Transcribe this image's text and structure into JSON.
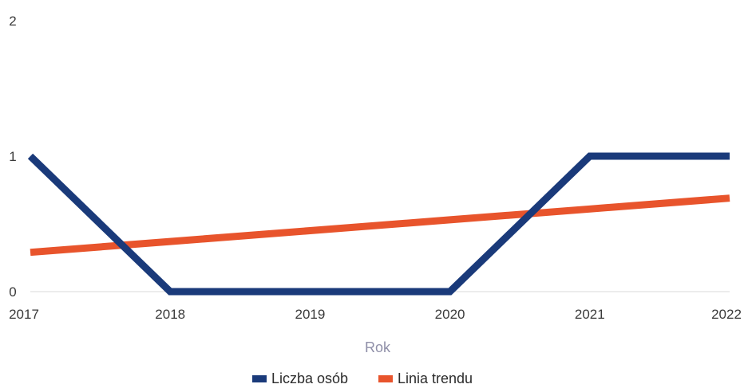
{
  "chart_data": {
    "type": "line",
    "x": [
      "2017",
      "2018",
      "2019",
      "2020",
      "2021",
      "2022"
    ],
    "series": [
      {
        "name": "Liczba osób",
        "color": "#1a3a7a",
        "values": [
          1,
          0,
          0,
          0,
          1,
          1
        ]
      },
      {
        "name": "Linia trendu",
        "color": "#e8542c",
        "values": [
          0.29,
          0.37,
          0.45,
          0.53,
          0.61,
          0.69
        ]
      }
    ],
    "title": "",
    "xlabel": "Rok",
    "ylabel": "",
    "ylim": [
      0,
      2
    ],
    "yticks": [
      "0",
      "1",
      "2"
    ],
    "grid": false,
    "legend": "bottom"
  }
}
